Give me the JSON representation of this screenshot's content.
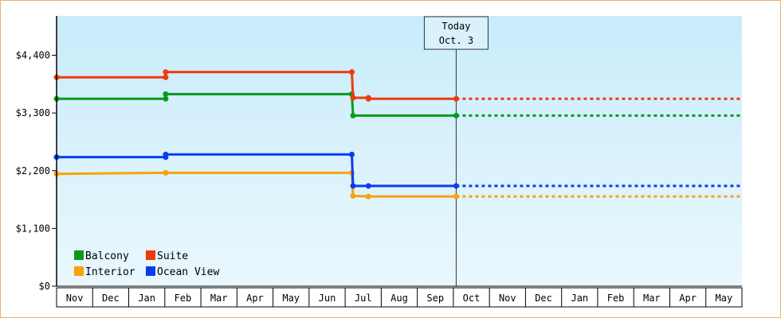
{
  "chart_data": {
    "type": "line",
    "step": true,
    "y_tick_labels": [
      "$0",
      "$1,100",
      "$2,200",
      "$3,300",
      "$4,400"
    ],
    "y_tick_values": [
      0,
      1100,
      2200,
      3300,
      4400
    ],
    "ylim": [
      0,
      5150
    ],
    "x_tick_labels": [
      "Nov",
      "Dec",
      "Jan",
      "Feb",
      "Mar",
      "Apr",
      "May",
      "Jun",
      "Jul",
      "Aug",
      "Sep",
      "Oct",
      "Nov",
      "Dec",
      "Jan",
      "Feb",
      "Mar",
      "Apr",
      "May"
    ],
    "x_domain": [
      "2023-11-01",
      "2025-05-31"
    ],
    "today": {
      "line1": "Today",
      "line2": "Oct. 3",
      "date": "2024-10-03"
    },
    "projection_end": "2025-05-31",
    "legend_position": "bottom-left",
    "background": [
      "#c8ecfb",
      "#eaf7fd"
    ],
    "series": [
      {
        "name": "Balcony",
        "color": "#0a9a1a",
        "points": [
          {
            "x": "2023-11-01",
            "y": 3570
          },
          {
            "x": "2024-02-01",
            "y": 3570
          },
          {
            "x": "2024-02-01",
            "y": 3660
          },
          {
            "x": "2024-07-07",
            "y": 3660
          },
          {
            "x": "2024-07-08",
            "y": 3250
          },
          {
            "x": "2024-10-03",
            "y": 3250
          }
        ]
      },
      {
        "name": "Suite",
        "color": "#ee3a0b",
        "points": [
          {
            "x": "2023-11-01",
            "y": 3980
          },
          {
            "x": "2024-02-01",
            "y": 3980
          },
          {
            "x": "2024-02-01",
            "y": 4080
          },
          {
            "x": "2024-07-07",
            "y": 4080
          },
          {
            "x": "2024-07-08",
            "y": 3590
          },
          {
            "x": "2024-07-21",
            "y": 3590
          },
          {
            "x": "2024-07-21",
            "y": 3570
          },
          {
            "x": "2024-10-03",
            "y": 3570
          }
        ]
      },
      {
        "name": "Interior",
        "color": "#f5a30a",
        "points": [
          {
            "x": "2023-11-01",
            "y": 2140
          },
          {
            "x": "2024-02-01",
            "y": 2160
          },
          {
            "x": "2024-07-07",
            "y": 2160
          },
          {
            "x": "2024-07-08",
            "y": 1720
          },
          {
            "x": "2024-07-21",
            "y": 1710
          },
          {
            "x": "2024-10-03",
            "y": 1710
          }
        ]
      },
      {
        "name": "Ocean View",
        "color": "#0a3df0",
        "points": [
          {
            "x": "2023-11-01",
            "y": 2460
          },
          {
            "x": "2024-02-01",
            "y": 2460
          },
          {
            "x": "2024-02-01",
            "y": 2510
          },
          {
            "x": "2024-07-07",
            "y": 2510
          },
          {
            "x": "2024-07-08",
            "y": 1910
          },
          {
            "x": "2024-07-21",
            "y": 1910
          },
          {
            "x": "2024-10-03",
            "y": 1910
          }
        ]
      }
    ]
  },
  "colors": {
    "frame_border": "#e8b070",
    "axis": "#000000",
    "today_line": "#333333"
  }
}
